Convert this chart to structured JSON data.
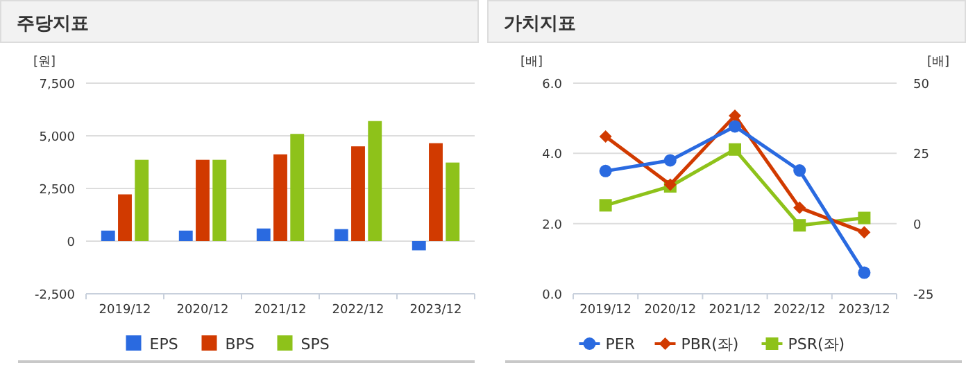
{
  "chart_data": [
    {
      "type": "bar",
      "title": "주당지표",
      "ylabel": "[원]",
      "categories": [
        "2019/12",
        "2020/12",
        "2021/12",
        "2022/12",
        "2023/12"
      ],
      "series": [
        {
          "name": "EPS",
          "color": "#2a6ae0",
          "values": [
            500,
            500,
            600,
            570,
            -440
          ]
        },
        {
          "name": "BPS",
          "color": "#d13a00",
          "values": [
            2220,
            3860,
            4120,
            4500,
            4650
          ]
        },
        {
          "name": "SPS",
          "color": "#8ec21a",
          "values": [
            3860,
            3860,
            5090,
            5700,
            3730
          ]
        }
      ],
      "ylim": [
        -2500,
        7500
      ],
      "yticks": [
        {
          "value": -2500,
          "label": "-2,500"
        },
        0,
        {
          "value": 2500,
          "label": "2,500"
        },
        {
          "value": 5000,
          "label": "5,000"
        },
        {
          "value": 7500,
          "label": "7,500"
        }
      ],
      "grid": "y",
      "legend": "bottom"
    },
    {
      "type": "line",
      "title": "가치지표",
      "ylabel": "[배]",
      "y2label": "[배]",
      "categories": [
        "2019/12",
        "2020/12",
        "2021/12",
        "2022/12",
        "2023/12"
      ],
      "series": [
        {
          "name": "PER",
          "color": "#2a6ae0",
          "axis": "y2",
          "marker": "circle",
          "values": [
            18.7,
            22.5,
            34.6,
            18.9,
            -17.5
          ]
        },
        {
          "name": "PBR(좌)",
          "color": "#d13a00",
          "marker": "diamond",
          "values": [
            4.48,
            3.11,
            5.07,
            2.45,
            1.75
          ]
        },
        {
          "name": "PSR(좌)",
          "color": "#8ec21a",
          "marker": "square",
          "values": [
            2.52,
            3.06,
            4.11,
            1.95,
            2.16
          ]
        }
      ],
      "ylim": [
        0,
        6
      ],
      "yticks": [
        {
          "value": 0,
          "label": "0.0"
        },
        {
          "value": 2,
          "label": "2.0"
        },
        {
          "value": 4,
          "label": "4.0"
        },
        {
          "value": 6,
          "label": "6.0"
        }
      ],
      "y2lim": [
        -25,
        50
      ],
      "y2ticks": [
        -25,
        0,
        25,
        50
      ],
      "grid": "y",
      "legend": "bottom",
      "line_style": "solid"
    }
  ]
}
